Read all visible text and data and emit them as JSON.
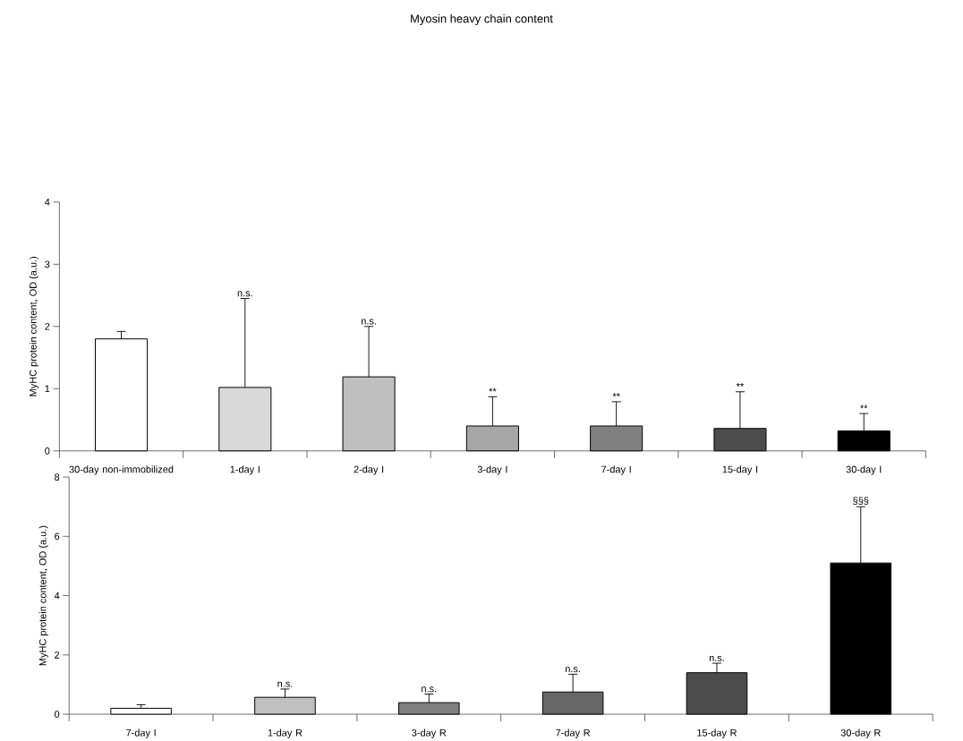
{
  "chart_data": [
    {
      "type": "bar",
      "title": "Myosin heavy chain content",
      "ylabel": "MyHC protein content, OD (a.u.)",
      "categories": [
        "30-day non-immobilized",
        "1-day I",
        "2-day I",
        "3-day I",
        "7-day I",
        "15-day I",
        "30-day I"
      ],
      "values": [
        1.8,
        1.02,
        1.19,
        0.4,
        0.4,
        0.36,
        0.32
      ],
      "errors": [
        0.12,
        1.43,
        0.81,
        0.47,
        0.39,
        0.59,
        0.28
      ],
      "colors": [
        "#ffffff",
        "#d9d9d9",
        "#bfbfbf",
        "#a6a6a6",
        "#808080",
        "#4d4d4d",
        "#000000"
      ],
      "ylim": [
        0,
        4
      ],
      "yticks": [
        0,
        1,
        2,
        3,
        4
      ],
      "annotations": [
        {
          "text": "n.s.",
          "x": "1-day I",
          "y": 2.45
        },
        {
          "text": "n.s.",
          "x": "2-day I",
          "y": 2.0
        },
        {
          "text": "**",
          "x": "3-day I",
          "y": 0.87
        },
        {
          "text": "**",
          "x": "7-day I",
          "y": 0.79
        },
        {
          "text": "**",
          "x": "15-day I",
          "y": 0.95
        },
        {
          "text": "**",
          "x": "30-day I",
          "y": 0.6
        }
      ]
    },
    {
      "type": "bar",
      "ylabel": "MyHC protein content, OD (a.u.)",
      "categories": [
        "7-day I",
        "1-day R",
        "3-day R",
        "7-day R",
        "15-day R",
        "30-day R"
      ],
      "values": [
        0.2,
        0.57,
        0.39,
        0.75,
        1.4,
        5.1
      ],
      "errors": [
        0.12,
        0.28,
        0.29,
        0.6,
        0.32,
        1.9
      ],
      "colors": [
        "#ffffff",
        "#c0c0c0",
        "#808080",
        "#666666",
        "#4d4d4d",
        "#000000"
      ],
      "ylim": [
        0,
        8
      ],
      "yticks": [
        0,
        2,
        4,
        6,
        8
      ],
      "annotations": [
        {
          "text": "n.s.",
          "x": "1-day R",
          "y": 0.85
        },
        {
          "text": "n.s.",
          "x": "3-day R",
          "y": 0.68
        },
        {
          "text": "n.s.",
          "x": "7-day R",
          "y": 1.35
        },
        {
          "text": "n.s.",
          "x": "15-day R",
          "y": 1.72
        },
        {
          "text": "§§§",
          "x": "30-day R",
          "y": 7.0
        }
      ]
    }
  ]
}
